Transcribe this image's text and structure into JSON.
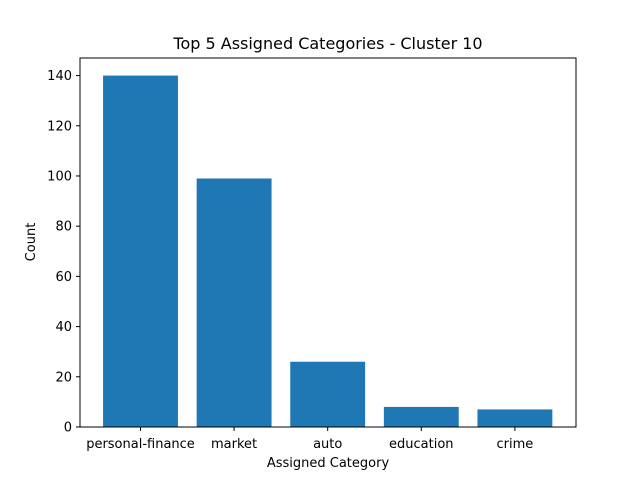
{
  "chart_data": {
    "type": "bar",
    "title": "Top 5 Assigned Categories - Cluster 10",
    "xlabel": "Assigned Category",
    "ylabel": "Count",
    "categories": [
      "personal-finance",
      "market",
      "auto",
      "education",
      "crime"
    ],
    "values": [
      140,
      99,
      26,
      8,
      7
    ],
    "ylim": [
      0,
      147
    ],
    "yticks": [
      0,
      20,
      40,
      60,
      80,
      100,
      120,
      140
    ],
    "grid": false,
    "legend": "none",
    "bar_color": "#1f77b4"
  }
}
